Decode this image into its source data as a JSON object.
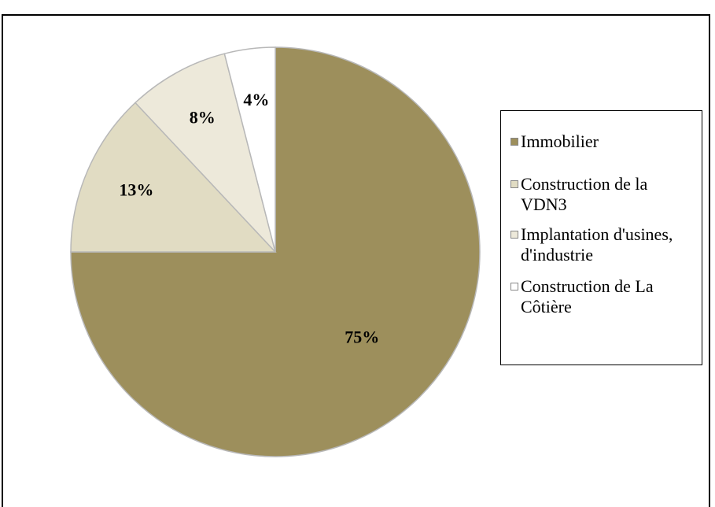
{
  "chart_data": {
    "type": "pie",
    "categories": [
      "Immobilier",
      "Construction de la VDN3",
      "Implantation d'usines, d'industrie",
      "Construction de La Côtière"
    ],
    "values": [
      75,
      13,
      8,
      4
    ],
    "value_labels": [
      "75%",
      "13%",
      "8%",
      "4%"
    ],
    "colors": [
      "#9d8f5c",
      "#e1dcc3",
      "#ede9da",
      "#ffffff"
    ],
    "legend": "right"
  }
}
